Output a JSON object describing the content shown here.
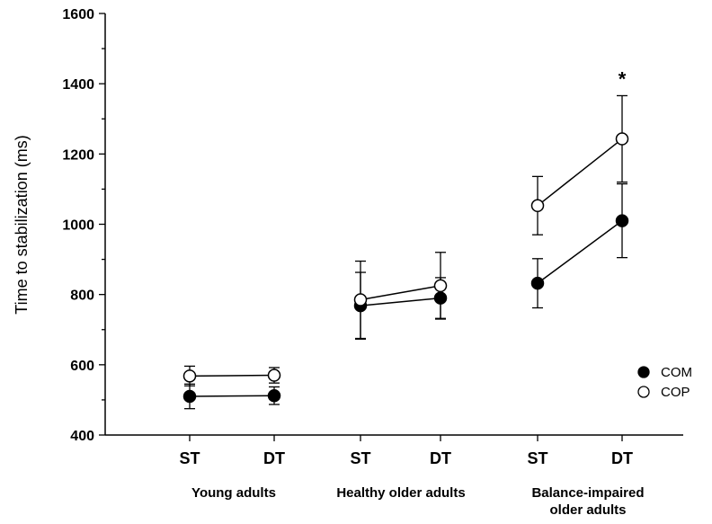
{
  "chart_data": {
    "type": "line",
    "title": "",
    "ylabel": "Time to stabilization (ms)",
    "xlabel": "",
    "ylim": [
      400,
      1600
    ],
    "yticks": [
      400,
      600,
      800,
      1000,
      1200,
      1400,
      1600
    ],
    "grid": false,
    "legend_position": "right",
    "groups": [
      {
        "label": "Young adults",
        "conditions": [
          "ST",
          "DT"
        ],
        "series": [
          {
            "name": "COM",
            "marker": "filled-circle",
            "values": [
              510,
              512
            ],
            "errors": [
              35,
              25
            ]
          },
          {
            "name": "COP",
            "marker": "open-circle",
            "values": [
              568,
              570
            ],
            "errors": [
              28,
              22
            ]
          }
        ]
      },
      {
        "label": "Healthy older adults",
        "conditions": [
          "ST",
          "DT"
        ],
        "series": [
          {
            "name": "COM",
            "marker": "filled-circle",
            "values": [
              768,
              790
            ],
            "errors": [
              95,
              58
            ]
          },
          {
            "name": "COP",
            "marker": "open-circle",
            "values": [
              785,
              825
            ],
            "errors": [
              110,
              95
            ]
          }
        ]
      },
      {
        "label": "Balance-impaired older adults",
        "conditions": [
          "ST",
          "DT"
        ],
        "series": [
          {
            "name": "COM",
            "marker": "filled-circle",
            "values": [
              832,
              1010
            ],
            "errors": [
              70,
              105
            ]
          },
          {
            "name": "COP",
            "marker": "open-circle",
            "values": [
              1053,
              1243
            ],
            "errors": [
              83,
              123
            ]
          }
        ]
      }
    ],
    "legend": [
      {
        "name": "COM",
        "marker": "filled-circle"
      },
      {
        "name": "COP",
        "marker": "open-circle"
      }
    ],
    "annotations": [
      {
        "text": "*",
        "group": 2,
        "condition": 1,
        "at_value": 1430
      }
    ]
  }
}
